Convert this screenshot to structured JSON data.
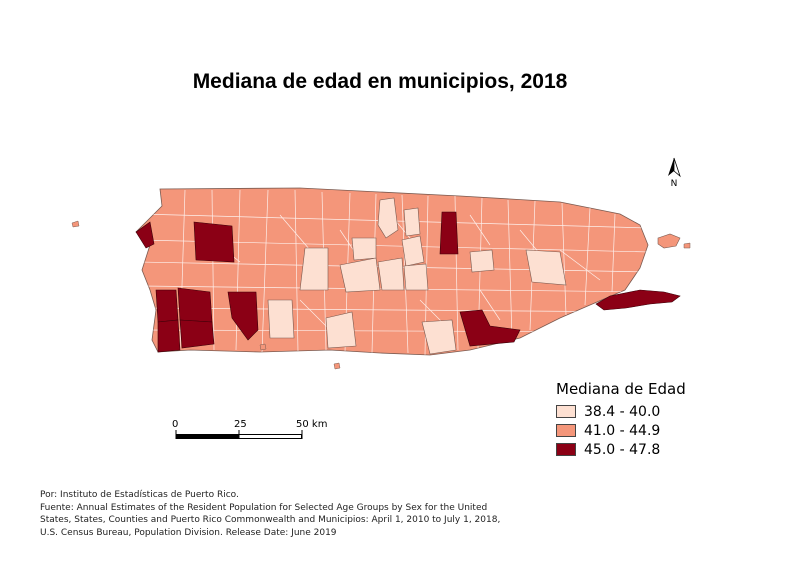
{
  "title": "Mediana de edad en municipios, 2018",
  "north_label": "N",
  "legend": {
    "title": "Mediana de Edad",
    "classes": [
      {
        "label": "38.4 - 40.0",
        "color": "#fde0d2"
      },
      {
        "label": "41.0 - 44.9",
        "color": "#f4967a"
      },
      {
        "label": "45.0 - 47.8",
        "color": "#8b0015"
      }
    ]
  },
  "scale_bar": {
    "labels": [
      "0",
      "25",
      "50 km"
    ]
  },
  "source": {
    "line1": "Por: Instituto de Estadísticas de Puerto Rico.",
    "line2": "Fuente: Annual Estimates of the Resident Population for Selected Age Groups by Sex for the United",
    "line3": "States, States, Counties and Puerto Rico Commonwealth and Municipios: April 1, 2010 to July 1, 2018,",
    "line4": "U.S. Census Bureau, Population Division. Release Date: June 2019"
  }
}
